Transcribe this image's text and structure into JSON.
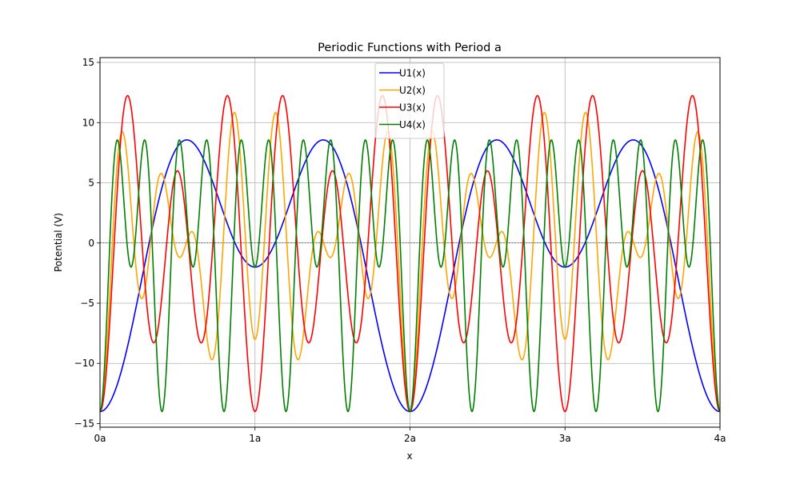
{
  "chart_data": {
    "type": "line",
    "title": "Periodic Functions with Period a",
    "xlabel": "x",
    "ylabel": "Potential (V)",
    "xlim": [
      0,
      4
    ],
    "ylim": [
      -15.3,
      15.4
    ],
    "xticks": [
      0,
      1,
      2,
      3,
      4
    ],
    "xtick_labels": [
      "0a",
      "1a",
      "2a",
      "3a",
      "4a"
    ],
    "yticks": [
      -15,
      -10,
      -5,
      0,
      5,
      10,
      15
    ],
    "ytick_labels": [
      "−15",
      "−10",
      "−5",
      "0",
      "5",
      "10",
      "15"
    ],
    "grid": true,
    "zero_line": true,
    "legend_position": "upper center",
    "series": [
      {
        "name": "U1(x)",
        "color": "#0000ff",
        "terms": [
          {
            "amp": -6,
            "k": 1
          },
          {
            "amp": -8,
            "k": 2
          }
        ]
      },
      {
        "name": "U2(x)",
        "color": "#ffa500",
        "terms": [
          {
            "amp": -3,
            "k": 3
          },
          {
            "amp": -5,
            "k": 6
          },
          {
            "amp": -6,
            "k": 8
          }
        ]
      },
      {
        "name": "U3(x)",
        "color": "#ff0000",
        "terms": [
          {
            "amp": -4,
            "k": 4
          },
          {
            "amp": -10,
            "k": 6
          }
        ]
      },
      {
        "name": "U4(x)",
        "color": "#008000",
        "terms": [
          {
            "amp": -6,
            "k": 5
          },
          {
            "amp": -8,
            "k": 10
          }
        ]
      }
    ]
  }
}
